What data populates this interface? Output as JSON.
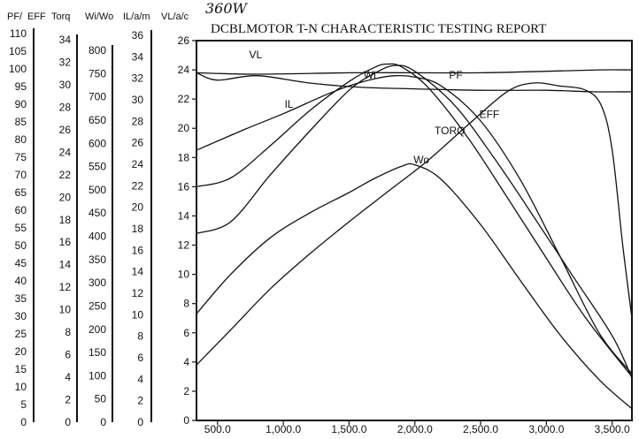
{
  "chart_data": {
    "type": "line",
    "title": "DCBLMOTOR   T-N CHARACTERISTIC TESTING REPORT",
    "handwritten_note": "360W",
    "x_ticks": [
      "500.0",
      "1,000.0",
      "1,500.0",
      "2,000.0",
      "2,500.0",
      "3,000.0",
      "3,500.0"
    ],
    "x_tick_values": [
      500,
      1000,
      1500,
      2000,
      2500,
      3000,
      3500
    ],
    "xlim": [
      340,
      3650
    ],
    "left_axes": [
      {
        "header": "PF/",
        "ticks": [
          "110",
          "105",
          "100",
          "95",
          "90",
          "85",
          "80",
          "75",
          "70",
          "65",
          "60",
          "55",
          "50",
          "45",
          "40",
          "35",
          "30",
          "25",
          "20",
          "15",
          "10",
          "5",
          "0"
        ]
      },
      {
        "header": "EFF",
        "ticks": []
      },
      {
        "header": "Torq",
        "ticks": [
          "34",
          "32",
          "30",
          "28",
          "26",
          "24",
          "22",
          "20",
          "18",
          "16",
          "14",
          "12",
          "10",
          "8",
          "6",
          "4",
          "2",
          "0"
        ]
      },
      {
        "header": "Wi/Wo",
        "ticks": [
          "800",
          "750",
          "700",
          "650",
          "600",
          "550",
          "500",
          "450",
          "400",
          "350",
          "300",
          "250",
          "200",
          "150",
          "100",
          "50",
          "0"
        ]
      },
      {
        "header": "IL/a/m",
        "ticks": [
          "36",
          "34",
          "32",
          "30",
          "28",
          "26",
          "24",
          "22",
          "20",
          "18",
          "16",
          "14",
          "12",
          "10",
          "8",
          "6",
          "4",
          "2",
          "0"
        ]
      },
      {
        "header": "VL/a/c",
        "ticks": [
          "26",
          "24",
          "22",
          "20",
          "18",
          "16",
          "14",
          "12",
          "10",
          "8",
          "6",
          "4",
          "2",
          "0"
        ]
      }
    ],
    "y_ticks": [
      "26",
      "24",
      "22",
      "20",
      "18",
      "16",
      "14",
      "12",
      "10",
      "8",
      "6",
      "4",
      "2",
      "0"
    ],
    "ylim": [
      0,
      26
    ],
    "series": [
      {
        "name": "VL",
        "x": [
          340,
          800,
          1500,
          2000,
          2500,
          3000,
          3400,
          3650
        ],
        "y": [
          23.8,
          23.7,
          23.8,
          23.8,
          23.8,
          23.9,
          24.0,
          24.0
        ]
      },
      {
        "name": "PF",
        "x": [
          340,
          500,
          800,
          1200,
          1600,
          2000,
          2500,
          3000,
          3350,
          3650
        ],
        "y": [
          23.8,
          23.3,
          23.6,
          23.1,
          22.8,
          22.7,
          22.6,
          22.6,
          22.5,
          22.5
        ]
      },
      {
        "name": "IL",
        "x": [
          340,
          700,
          1000,
          1300,
          1500,
          1700,
          1850,
          2000,
          2200,
          2500,
          2800,
          3100,
          3400,
          3650
        ],
        "y": [
          18.5,
          19.9,
          21.0,
          22.2,
          22.9,
          23.4,
          23.6,
          23.5,
          22.9,
          20.5,
          16.5,
          11.3,
          6.0,
          3.2
        ]
      },
      {
        "name": "Wi",
        "x": [
          340,
          600,
          900,
          1200,
          1500,
          1700,
          1800,
          1900,
          2100,
          2400,
          2700,
          3000,
          3300,
          3650
        ],
        "y": [
          16.0,
          16.6,
          18.8,
          21.2,
          23.2,
          24.2,
          24.4,
          24.2,
          22.8,
          19.4,
          15.3,
          11.1,
          7.0,
          3.0
        ]
      },
      {
        "name": "TORQ",
        "x": [
          340,
          600,
          900,
          1200,
          1500,
          1700,
          1850,
          2000,
          2300,
          2600,
          2900,
          3200,
          3500,
          3650
        ],
        "y": [
          12.8,
          13.6,
          16.8,
          19.8,
          22.6,
          23.8,
          24.3,
          23.9,
          21.6,
          18.0,
          14.0,
          9.9,
          5.8,
          2.9
        ]
      },
      {
        "name": "Wo",
        "x": [
          340,
          600,
          900,
          1200,
          1500,
          1700,
          1900,
          2000,
          2200,
          2500,
          2800,
          3100,
          3400,
          3650
        ],
        "y": [
          7.3,
          10.0,
          12.5,
          14.2,
          15.6,
          16.6,
          17.4,
          17.5,
          16.5,
          13.4,
          9.6,
          5.9,
          2.8,
          0.8
        ]
      },
      {
        "name": "EFF",
        "x": [
          340,
          600,
          900,
          1200,
          1500,
          1800,
          2100,
          2400,
          2700,
          2900,
          3100,
          3300,
          3420,
          3500,
          3580,
          3650
        ],
        "y": [
          3.8,
          6.2,
          9.0,
          11.4,
          13.6,
          15.7,
          17.8,
          20.2,
          22.5,
          23.1,
          22.9,
          22.6,
          21.5,
          18.5,
          12.0,
          7.0
        ]
      }
    ],
    "curve_labels": [
      {
        "name": "VL",
        "x": 740,
        "y": 24.8
      },
      {
        "name": "Wi",
        "x": 1610,
        "y": 23.4
      },
      {
        "name": "PF",
        "x": 2260,
        "y": 23.4
      },
      {
        "name": "IL",
        "x": 1010,
        "y": 21.4
      },
      {
        "name": "EFF",
        "x": 2490,
        "y": 20.7
      },
      {
        "name": "TORQ",
        "x": 2150,
        "y": 19.6
      },
      {
        "name": "Wo",
        "x": 1990,
        "y": 17.6
      }
    ]
  }
}
